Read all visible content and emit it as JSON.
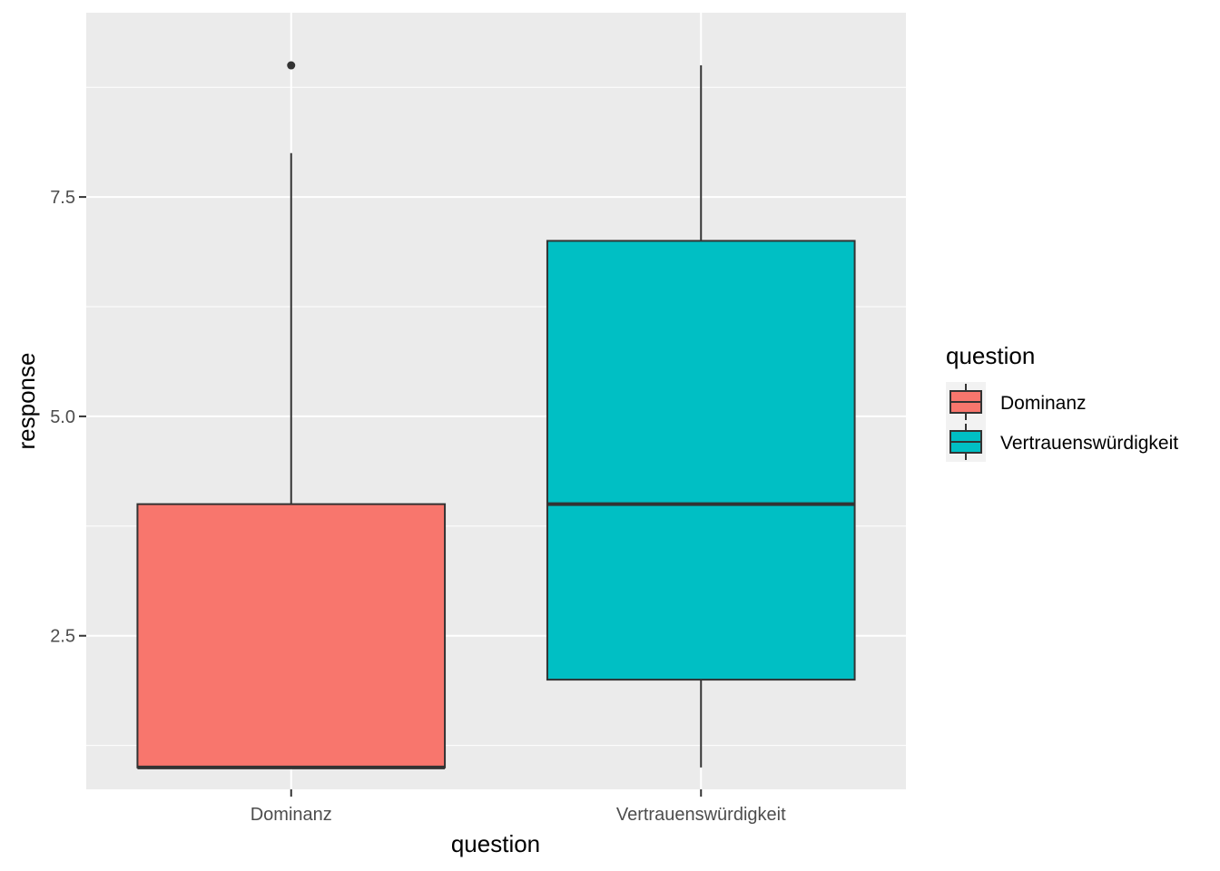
{
  "chart_data": {
    "type": "boxplot",
    "xlabel": "question",
    "ylabel": "response",
    "categories": [
      "Dominanz",
      "Vertrauenswürdigkeit"
    ],
    "ylim": [
      0.75,
      9.6
    ],
    "y_ticks": [
      2.5,
      5.0,
      7.5
    ],
    "y_tick_labels": [
      "2.5",
      "5.0",
      "7.5"
    ],
    "grid": true,
    "background": "#ebebeb",
    "boxes": [
      {
        "category": "Dominanz",
        "fill": "#f8766d",
        "lower_whisker": 1,
        "q1": 1,
        "median": 1,
        "q3": 4,
        "upper_whisker": 8,
        "outliers": [
          9
        ]
      },
      {
        "category": "Vertrauenswürdigkeit",
        "fill": "#00bfc4",
        "lower_whisker": 1,
        "q1": 2,
        "median": 4,
        "q3": 7,
        "upper_whisker": 9,
        "outliers": []
      }
    ],
    "legend": {
      "title": "question",
      "position": "right",
      "items": [
        {
          "label": "Dominanz",
          "color": "#f8766d"
        },
        {
          "label": "Vertrauenswürdigkeit",
          "color": "#00bfc4"
        }
      ]
    }
  }
}
